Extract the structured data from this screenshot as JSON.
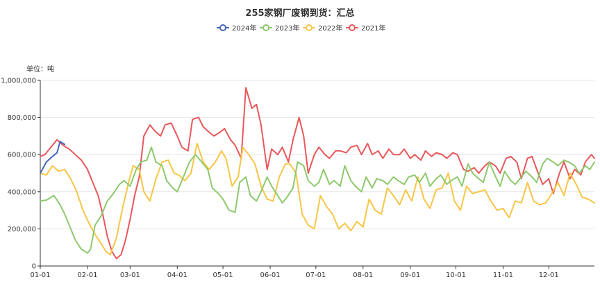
{
  "chart_data": {
    "type": "line",
    "title": "255家钢厂废钢到货：汇总",
    "unit_label": "单位：吨",
    "xlabel": "",
    "ylabel": "",
    "x_ticks": [
      "01-01",
      "02-01",
      "03-01",
      "04-01",
      "05-01",
      "06-01",
      "07-01",
      "08-01",
      "09-01",
      "10-01",
      "11-01",
      "12-01"
    ],
    "xlim": [
      "01-01",
      "12-31"
    ],
    "ylim": [
      0,
      1000000
    ],
    "y_ticks": [
      0,
      200000,
      400000,
      600000,
      800000,
      1000000
    ],
    "y_tick_labels": [
      "0",
      "200,000",
      "400,000",
      "600,000",
      "800,000",
      "1,000,000"
    ],
    "grid": true,
    "legend_position": "top-center",
    "series": [
      {
        "name": "2024年",
        "color": "#4766b8",
        "x": [
          "01-01",
          "01-05",
          "01-09",
          "01-12",
          "01-14",
          "01-17"
        ],
        "values": [
          500000,
          560000,
          590000,
          610000,
          670000,
          655000
        ]
      },
      {
        "name": "2023年",
        "color": "#8cc96c",
        "x": [
          "01-01",
          "01-05",
          "01-10",
          "01-14",
          "01-17",
          "01-20",
          "01-24",
          "01-28",
          "02-01",
          "02-03",
          "02-06",
          "02-10",
          "02-14",
          "02-18",
          "02-22",
          "02-25",
          "03-01",
          "03-05",
          "03-08",
          "03-12",
          "03-15",
          "03-18",
          "03-22",
          "03-25",
          "03-29",
          "04-01",
          "04-05",
          "04-09",
          "04-13",
          "04-17",
          "04-21",
          "04-24",
          "04-28",
          "05-01",
          "05-05",
          "05-09",
          "05-12",
          "05-16",
          "05-19",
          "05-23",
          "05-26",
          "05-30",
          "06-02",
          "06-06",
          "06-09",
          "06-12",
          "06-16",
          "06-19",
          "06-23",
          "06-26",
          "06-30",
          "07-03",
          "07-06",
          "07-10",
          "07-13",
          "07-17",
          "07-20",
          "07-24",
          "07-27",
          "07-31",
          "08-03",
          "08-07",
          "08-10",
          "08-14",
          "08-17",
          "08-21",
          "08-24",
          "08-28",
          "08-31",
          "09-04",
          "09-07",
          "09-11",
          "09-14",
          "09-18",
          "09-21",
          "09-25",
          "09-28",
          "10-02",
          "10-05",
          "10-09",
          "10-12",
          "10-16",
          "10-19",
          "10-23",
          "10-26",
          "10-30",
          "11-02",
          "11-06",
          "11-09",
          "11-13",
          "11-16",
          "11-20",
          "11-23",
          "11-27",
          "11-30",
          "12-04",
          "12-07",
          "12-11",
          "12-14",
          "12-18",
          "12-21",
          "12-25",
          "12-28",
          "12-31"
        ],
        "values": [
          350000,
          355000,
          380000,
          330000,
          280000,
          220000,
          140000,
          90000,
          70000,
          90000,
          220000,
          270000,
          350000,
          390000,
          440000,
          460000,
          430000,
          520000,
          560000,
          570000,
          640000,
          560000,
          540000,
          460000,
          420000,
          400000,
          480000,
          560000,
          600000,
          560000,
          520000,
          420000,
          390000,
          360000,
          300000,
          290000,
          450000,
          480000,
          380000,
          350000,
          400000,
          480000,
          430000,
          380000,
          340000,
          370000,
          420000,
          560000,
          540000,
          460000,
          430000,
          450000,
          520000,
          440000,
          460000,
          430000,
          540000,
          460000,
          430000,
          400000,
          480000,
          420000,
          470000,
          460000,
          440000,
          480000,
          460000,
          440000,
          480000,
          490000,
          450000,
          500000,
          430000,
          470000,
          490000,
          440000,
          460000,
          480000,
          430000,
          550000,
          500000,
          470000,
          450000,
          560000,
          500000,
          430000,
          510000,
          460000,
          440000,
          480000,
          510000,
          480000,
          450000,
          550000,
          580000,
          560000,
          540000,
          570000,
          560000,
          540000,
          500000,
          540000,
          520000,
          560000
        ]
      },
      {
        "name": "2022年",
        "color": "#f8c545",
        "x": [
          "01-01",
          "01-05",
          "01-09",
          "01-13",
          "01-17",
          "01-21",
          "01-25",
          "01-29",
          "02-02",
          "02-06",
          "02-10",
          "02-13",
          "02-16",
          "02-20",
          "02-24",
          "02-28",
          "03-03",
          "03-07",
          "03-10",
          "03-14",
          "03-18",
          "03-22",
          "03-26",
          "03-30",
          "04-02",
          "04-06",
          "04-10",
          "04-14",
          "04-18",
          "04-22",
          "04-26",
          "04-30",
          "05-03",
          "05-07",
          "05-11",
          "05-14",
          "05-18",
          "05-22",
          "05-26",
          "05-30",
          "06-03",
          "06-07",
          "06-11",
          "06-14",
          "06-18",
          "06-22",
          "06-26",
          "06-30",
          "07-04",
          "07-08",
          "07-12",
          "07-16",
          "07-20",
          "07-24",
          "07-28",
          "08-01",
          "08-05",
          "08-09",
          "08-13",
          "08-17",
          "08-21",
          "08-25",
          "08-29",
          "09-02",
          "09-06",
          "09-10",
          "09-14",
          "09-18",
          "09-22",
          "09-26",
          "09-30",
          "10-04",
          "10-08",
          "10-12",
          "10-16",
          "10-20",
          "10-24",
          "10-28",
          "11-01",
          "11-05",
          "11-09",
          "11-13",
          "11-17",
          "11-21",
          "11-25",
          "11-29",
          "12-03",
          "12-07",
          "12-11",
          "12-15",
          "12-19",
          "12-23",
          "12-27",
          "12-31"
        ],
        "values": [
          500000,
          490000,
          540000,
          510000,
          520000,
          470000,
          400000,
          300000,
          230000,
          170000,
          120000,
          80000,
          60000,
          150000,
          310000,
          450000,
          540000,
          520000,
          400000,
          350000,
          470000,
          560000,
          570000,
          500000,
          490000,
          460000,
          500000,
          660000,
          560000,
          520000,
          560000,
          620000,
          580000,
          430000,
          480000,
          640000,
          600000,
          550000,
          430000,
          360000,
          350000,
          480000,
          550000,
          550000,
          500000,
          280000,
          220000,
          200000,
          380000,
          320000,
          280000,
          200000,
          230000,
          190000,
          240000,
          210000,
          360000,
          300000,
          280000,
          420000,
          380000,
          330000,
          410000,
          350000,
          480000,
          360000,
          310000,
          410000,
          420000,
          500000,
          350000,
          300000,
          430000,
          390000,
          400000,
          410000,
          350000,
          300000,
          310000,
          260000,
          350000,
          340000,
          450000,
          350000,
          330000,
          340000,
          390000,
          450000,
          380000,
          500000,
          440000,
          370000,
          360000,
          340000
        ]
      },
      {
        "name": "2021年",
        "color": "#e9575b",
        "x": [
          "01-01",
          "01-04",
          "01-08",
          "01-12",
          "01-16",
          "01-20",
          "01-24",
          "01-28",
          "02-01",
          "02-04",
          "02-08",
          "02-11",
          "02-14",
          "02-17",
          "02-20",
          "02-23",
          "02-26",
          "03-01",
          "03-04",
          "03-07",
          "03-10",
          "03-14",
          "03-17",
          "03-21",
          "03-24",
          "03-28",
          "04-01",
          "04-04",
          "04-08",
          "04-11",
          "04-15",
          "04-18",
          "04-22",
          "04-25",
          "04-29",
          "05-02",
          "05-06",
          "05-09",
          "05-13",
          "05-16",
          "05-20",
          "05-23",
          "05-26",
          "05-30",
          "06-02",
          "06-06",
          "06-09",
          "06-13",
          "06-16",
          "06-20",
          "06-23",
          "06-26",
          "06-30",
          "07-03",
          "07-07",
          "07-10",
          "07-14",
          "07-17",
          "07-21",
          "07-24",
          "07-28",
          "07-31",
          "08-04",
          "08-07",
          "08-11",
          "08-14",
          "08-18",
          "08-21",
          "08-25",
          "08-28",
          "09-01",
          "09-04",
          "09-08",
          "09-11",
          "09-15",
          "09-18",
          "09-22",
          "09-25",
          "09-29",
          "10-02",
          "10-06",
          "10-09",
          "10-13",
          "10-16",
          "10-20",
          "10-23",
          "10-27",
          "10-30",
          "11-03",
          "11-06",
          "11-10",
          "11-13",
          "11-17",
          "11-20",
          "11-24",
          "11-27",
          "12-01",
          "12-04",
          "12-08",
          "12-11",
          "12-15",
          "12-18",
          "12-22",
          "12-25",
          "12-29",
          "12-31"
        ],
        "values": [
          590000,
          600000,
          640000,
          680000,
          650000,
          630000,
          600000,
          570000,
          520000,
          460000,
          380000,
          280000,
          160000,
          80000,
          40000,
          60000,
          140000,
          250000,
          380000,
          480000,
          700000,
          760000,
          730000,
          700000,
          760000,
          770000,
          700000,
          640000,
          620000,
          790000,
          800000,
          750000,
          720000,
          700000,
          720000,
          740000,
          680000,
          650000,
          580000,
          960000,
          850000,
          870000,
          760000,
          520000,
          630000,
          600000,
          640000,
          560000,
          680000,
          800000,
          700000,
          500000,
          600000,
          640000,
          600000,
          580000,
          620000,
          620000,
          610000,
          640000,
          650000,
          600000,
          660000,
          600000,
          620000,
          580000,
          630000,
          600000,
          600000,
          630000,
          580000,
          600000,
          570000,
          620000,
          590000,
          610000,
          600000,
          580000,
          610000,
          600000,
          520000,
          510000,
          530000,
          500000,
          540000,
          560000,
          540000,
          500000,
          580000,
          590000,
          560000,
          470000,
          580000,
          590000,
          500000,
          440000,
          470000,
          390000,
          500000,
          560000,
          470000,
          520000,
          490000,
          560000,
          600000,
          580000
        ]
      }
    ]
  }
}
